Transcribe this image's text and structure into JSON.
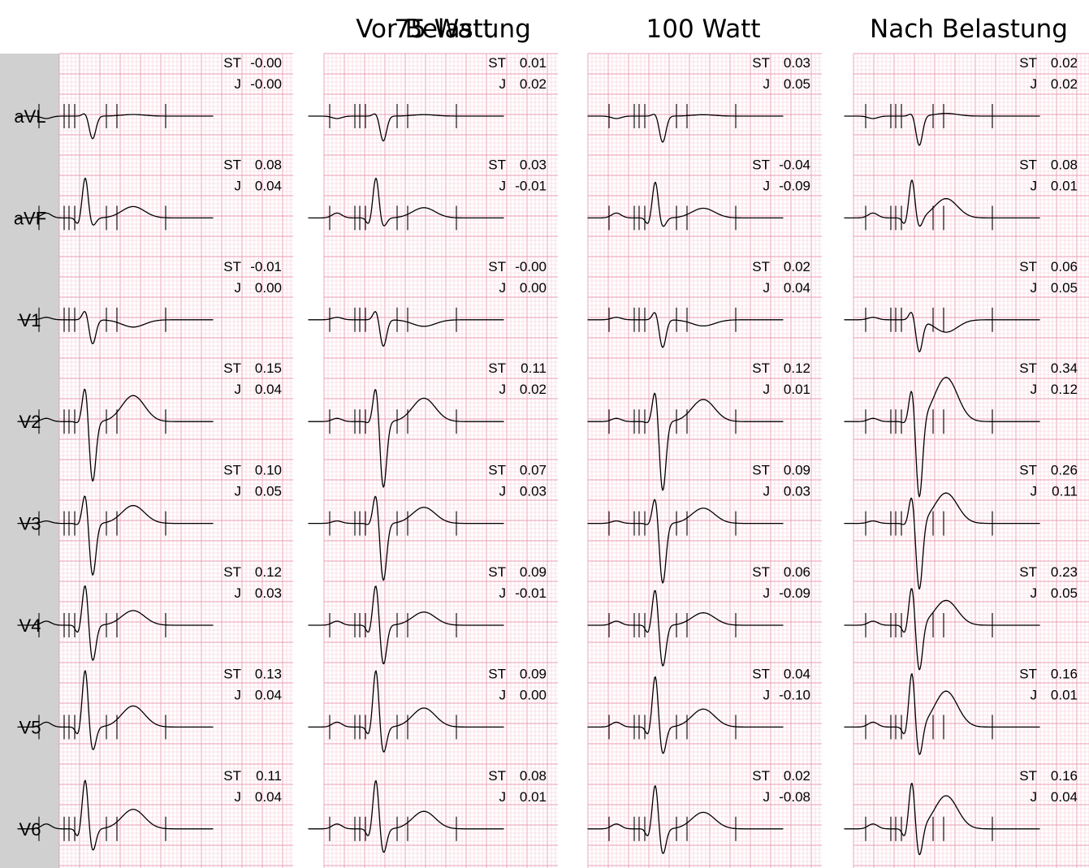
{
  "chart_data": {
    "type": "ecg-comparison",
    "stages": [
      "Vor Belastung",
      "75 Watt",
      "100 Watt",
      "Nach Belastung"
    ],
    "leads": [
      "aVL",
      "aVF",
      "V1",
      "V2",
      "V3",
      "V4",
      "V5",
      "V6"
    ],
    "measurement_labels": {
      "st": "ST",
      "j": "J"
    },
    "measurements": [
      [
        {
          "lead": "aVL",
          "st": "-0.00",
          "j": "-0.00"
        },
        {
          "lead": "aVF",
          "st": "0.08",
          "j": "0.04"
        },
        {
          "lead": "V1",
          "st": "-0.01",
          "j": "0.00"
        },
        {
          "lead": "V2",
          "st": "0.15",
          "j": "0.04"
        },
        {
          "lead": "V3",
          "st": "0.10",
          "j": "0.05"
        },
        {
          "lead": "V4",
          "st": "0.12",
          "j": "0.03"
        },
        {
          "lead": "V5",
          "st": "0.13",
          "j": "0.04"
        },
        {
          "lead": "V6",
          "st": "0.11",
          "j": "0.04"
        }
      ],
      [
        {
          "lead": "aVL",
          "st": "0.01",
          "j": "0.02"
        },
        {
          "lead": "aVF",
          "st": "0.03",
          "j": "-0.01"
        },
        {
          "lead": "V1",
          "st": "-0.00",
          "j": "0.00"
        },
        {
          "lead": "V2",
          "st": "0.11",
          "j": "0.02"
        },
        {
          "lead": "V3",
          "st": "0.07",
          "j": "0.03"
        },
        {
          "lead": "V4",
          "st": "0.09",
          "j": "-0.01"
        },
        {
          "lead": "V5",
          "st": "0.09",
          "j": "0.00"
        },
        {
          "lead": "V6",
          "st": "0.08",
          "j": "0.01"
        }
      ],
      [
        {
          "lead": "aVL",
          "st": "0.03",
          "j": "0.05"
        },
        {
          "lead": "aVF",
          "st": "-0.04",
          "j": "-0.09"
        },
        {
          "lead": "V1",
          "st": "0.02",
          "j": "0.04"
        },
        {
          "lead": "V2",
          "st": "0.12",
          "j": "0.01"
        },
        {
          "lead": "V3",
          "st": "0.09",
          "j": "0.03"
        },
        {
          "lead": "V4",
          "st": "0.06",
          "j": "-0.09"
        },
        {
          "lead": "V5",
          "st": "0.04",
          "j": "-0.10"
        },
        {
          "lead": "V6",
          "st": "0.02",
          "j": "-0.08"
        }
      ],
      [
        {
          "lead": "aVL",
          "st": "0.02",
          "j": "0.02"
        },
        {
          "lead": "aVF",
          "st": "0.08",
          "j": "0.01"
        },
        {
          "lead": "V1",
          "st": "0.06",
          "j": "0.05"
        },
        {
          "lead": "V2",
          "st": "0.34",
          "j": "0.12"
        },
        {
          "lead": "V3",
          "st": "0.26",
          "j": "0.11"
        },
        {
          "lead": "V4",
          "st": "0.23",
          "j": "0.05"
        },
        {
          "lead": "V5",
          "st": "0.16",
          "j": "0.01"
        },
        {
          "lead": "V6",
          "st": "0.16",
          "j": "0.04"
        }
      ]
    ],
    "grid": true,
    "grid_color": "#ea9cb3",
    "sidebar_color": "#d0d0d0"
  }
}
